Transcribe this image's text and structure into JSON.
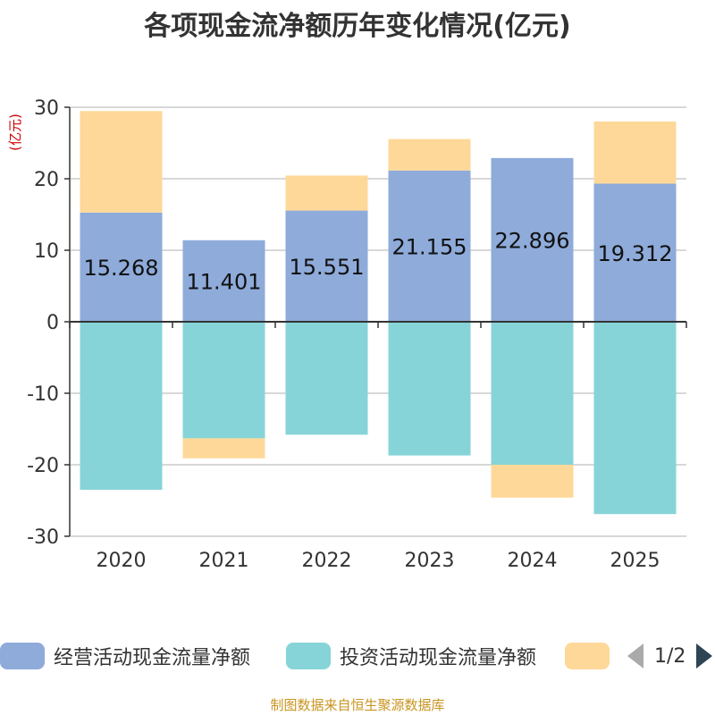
{
  "chart_data": {
    "type": "bar",
    "stacked": true,
    "title": "各项现金流净额历年变化情况(亿元)",
    "ylabel": "(亿元)",
    "xlabel": "",
    "ylim": [
      -30,
      30
    ],
    "yticks": [
      30,
      20,
      10,
      0,
      -10,
      -20,
      -30
    ],
    "categories": [
      "2020",
      "2021",
      "2022",
      "2023",
      "2024",
      "2025"
    ],
    "series": [
      {
        "name": "经营活动现金流量净额",
        "color": "#8eabda",
        "values": [
          15.268,
          11.401,
          15.551,
          21.155,
          22.896,
          19.312
        ],
        "data_labels": [
          "15.268",
          "11.401",
          "15.551",
          "21.155",
          "22.896",
          "19.312"
        ]
      },
      {
        "name": "投资活动现金流量净额",
        "color": "#86d4d8",
        "values": [
          -23.5,
          -16.3,
          -15.8,
          -18.7,
          -20.0,
          -26.9
        ]
      },
      {
        "name": "",
        "color": "#fed899",
        "values": [
          14.2,
          -2.8,
          4.9,
          4.4,
          -4.6,
          8.7
        ]
      }
    ],
    "legend_position": "bottom"
  },
  "legend": {
    "page_indicator": "1/2"
  },
  "source": "制图数据来自恒生聚源数据库"
}
